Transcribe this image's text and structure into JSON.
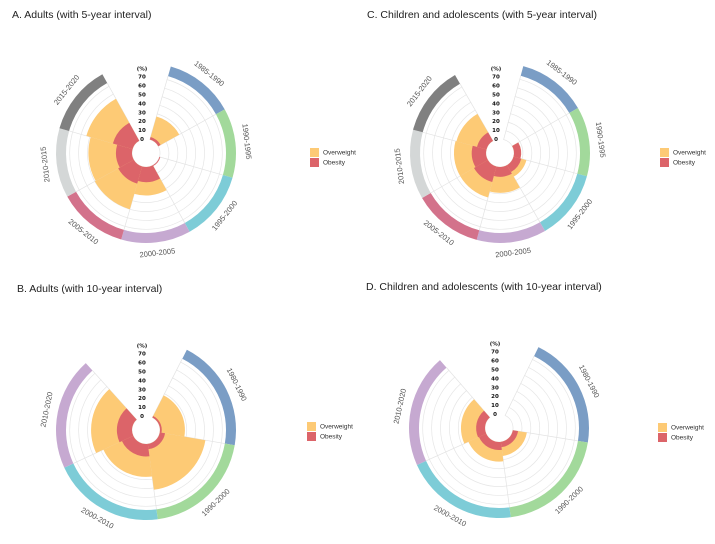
{
  "chart_data": [
    {
      "type": "radial-bar",
      "title": "A. Adults (with 5-year interval)",
      "unit_label": "(%)",
      "ticks": [
        "0",
        "10",
        "20",
        "30",
        "40",
        "50",
        "60",
        "70"
      ],
      "ylim": [
        0,
        70
      ],
      "categories": [
        "1985-1990",
        "1990-1995",
        "1995-2000",
        "2000-2005",
        "2005-2010",
        "2010-2015",
        "2015-2020"
      ],
      "category_colors": [
        "#7a9dc5",
        "#a2d99b",
        "#7dccd7",
        "#c6a9d1",
        "#d3728b",
        "#d4d7d7",
        "#808080"
      ],
      "series": [
        {
          "name": "Overweight",
          "color": "#fdca75",
          "values": [
            27,
            0,
            0,
            32,
            50,
            49,
            54
          ]
        },
        {
          "name": "Obesity",
          "color": "#dc6469",
          "values": [
            3,
            0,
            1,
            17,
            20,
            18,
            23
          ]
        }
      ],
      "legend_position": "right",
      "grid": true
    },
    {
      "type": "radial-bar",
      "title": "B. Adults (with 10-year interval)",
      "unit_label": "(%)",
      "ticks": [
        "0",
        "10",
        "20",
        "30",
        "40",
        "50",
        "60",
        "70"
      ],
      "ylim": [
        0,
        70
      ],
      "categories": [
        "1980-1990",
        "1990-2000",
        "2000-2010",
        "2010-2020"
      ],
      "category_colors": [
        "#7a9dc5",
        "#a2d99b",
        "#7dccd7",
        "#c6a9d1"
      ],
      "series": [
        {
          "name": "Overweight",
          "color": "#fdca75",
          "values": [
            28,
            52,
            37,
            46
          ]
        },
        {
          "name": "Obesity",
          "color": "#dc6469",
          "values": [
            2,
            6,
            14,
            17
          ]
        }
      ],
      "legend_position": "right",
      "grid": true
    },
    {
      "type": "radial-bar",
      "title": "C. Children and adolescents (with 5-year interval)",
      "unit_label": "(%)",
      "ticks": [
        "0",
        "10",
        "20",
        "30",
        "40",
        "50",
        "60",
        "70"
      ],
      "ylim": [
        0,
        70
      ],
      "categories": [
        "1985-1990",
        "1990-1995",
        "1995-2000",
        "2000-2005",
        "2005-2010",
        "2010-2015",
        "2015-2020"
      ],
      "category_colors": [
        "#7a9dc5",
        "#a2d99b",
        "#7dccd7",
        "#c6a9d1",
        "#d3728b",
        "#d4d7d7",
        "#808080"
      ],
      "series": [
        {
          "name": "Overweight",
          "color": "#fdca75",
          "values": [
            0,
            8,
            15,
            29,
            36,
            36,
            35
          ]
        },
        {
          "name": "Obesity",
          "color": "#dc6469",
          "values": [
            0,
            8,
            9,
            11,
            18,
            16,
            11
          ]
        }
      ],
      "legend_position": "right",
      "grid": true
    },
    {
      "type": "radial-bar",
      "title": "D. Children and adolescents (with 10-year interval)",
      "unit_label": "(%)",
      "ticks": [
        "0",
        "10",
        "20",
        "30",
        "40",
        "50",
        "60",
        "70"
      ],
      "ylim": [
        0,
        70
      ],
      "categories": [
        "1980-1990",
        "1990-2000",
        "2000-2010",
        "2010-2020"
      ],
      "category_colors": [
        "#7a9dc5",
        "#a2d99b",
        "#7dccd7",
        "#c6a9d1"
      ],
      "series": [
        {
          "name": "Overweight",
          "color": "#fdca75",
          "values": [
            0,
            16,
            22,
            27
          ]
        },
        {
          "name": "Obesity",
          "color": "#dc6469",
          "values": [
            0,
            6,
            9,
            10
          ]
        }
      ],
      "legend_position": "right",
      "grid": true
    }
  ]
}
